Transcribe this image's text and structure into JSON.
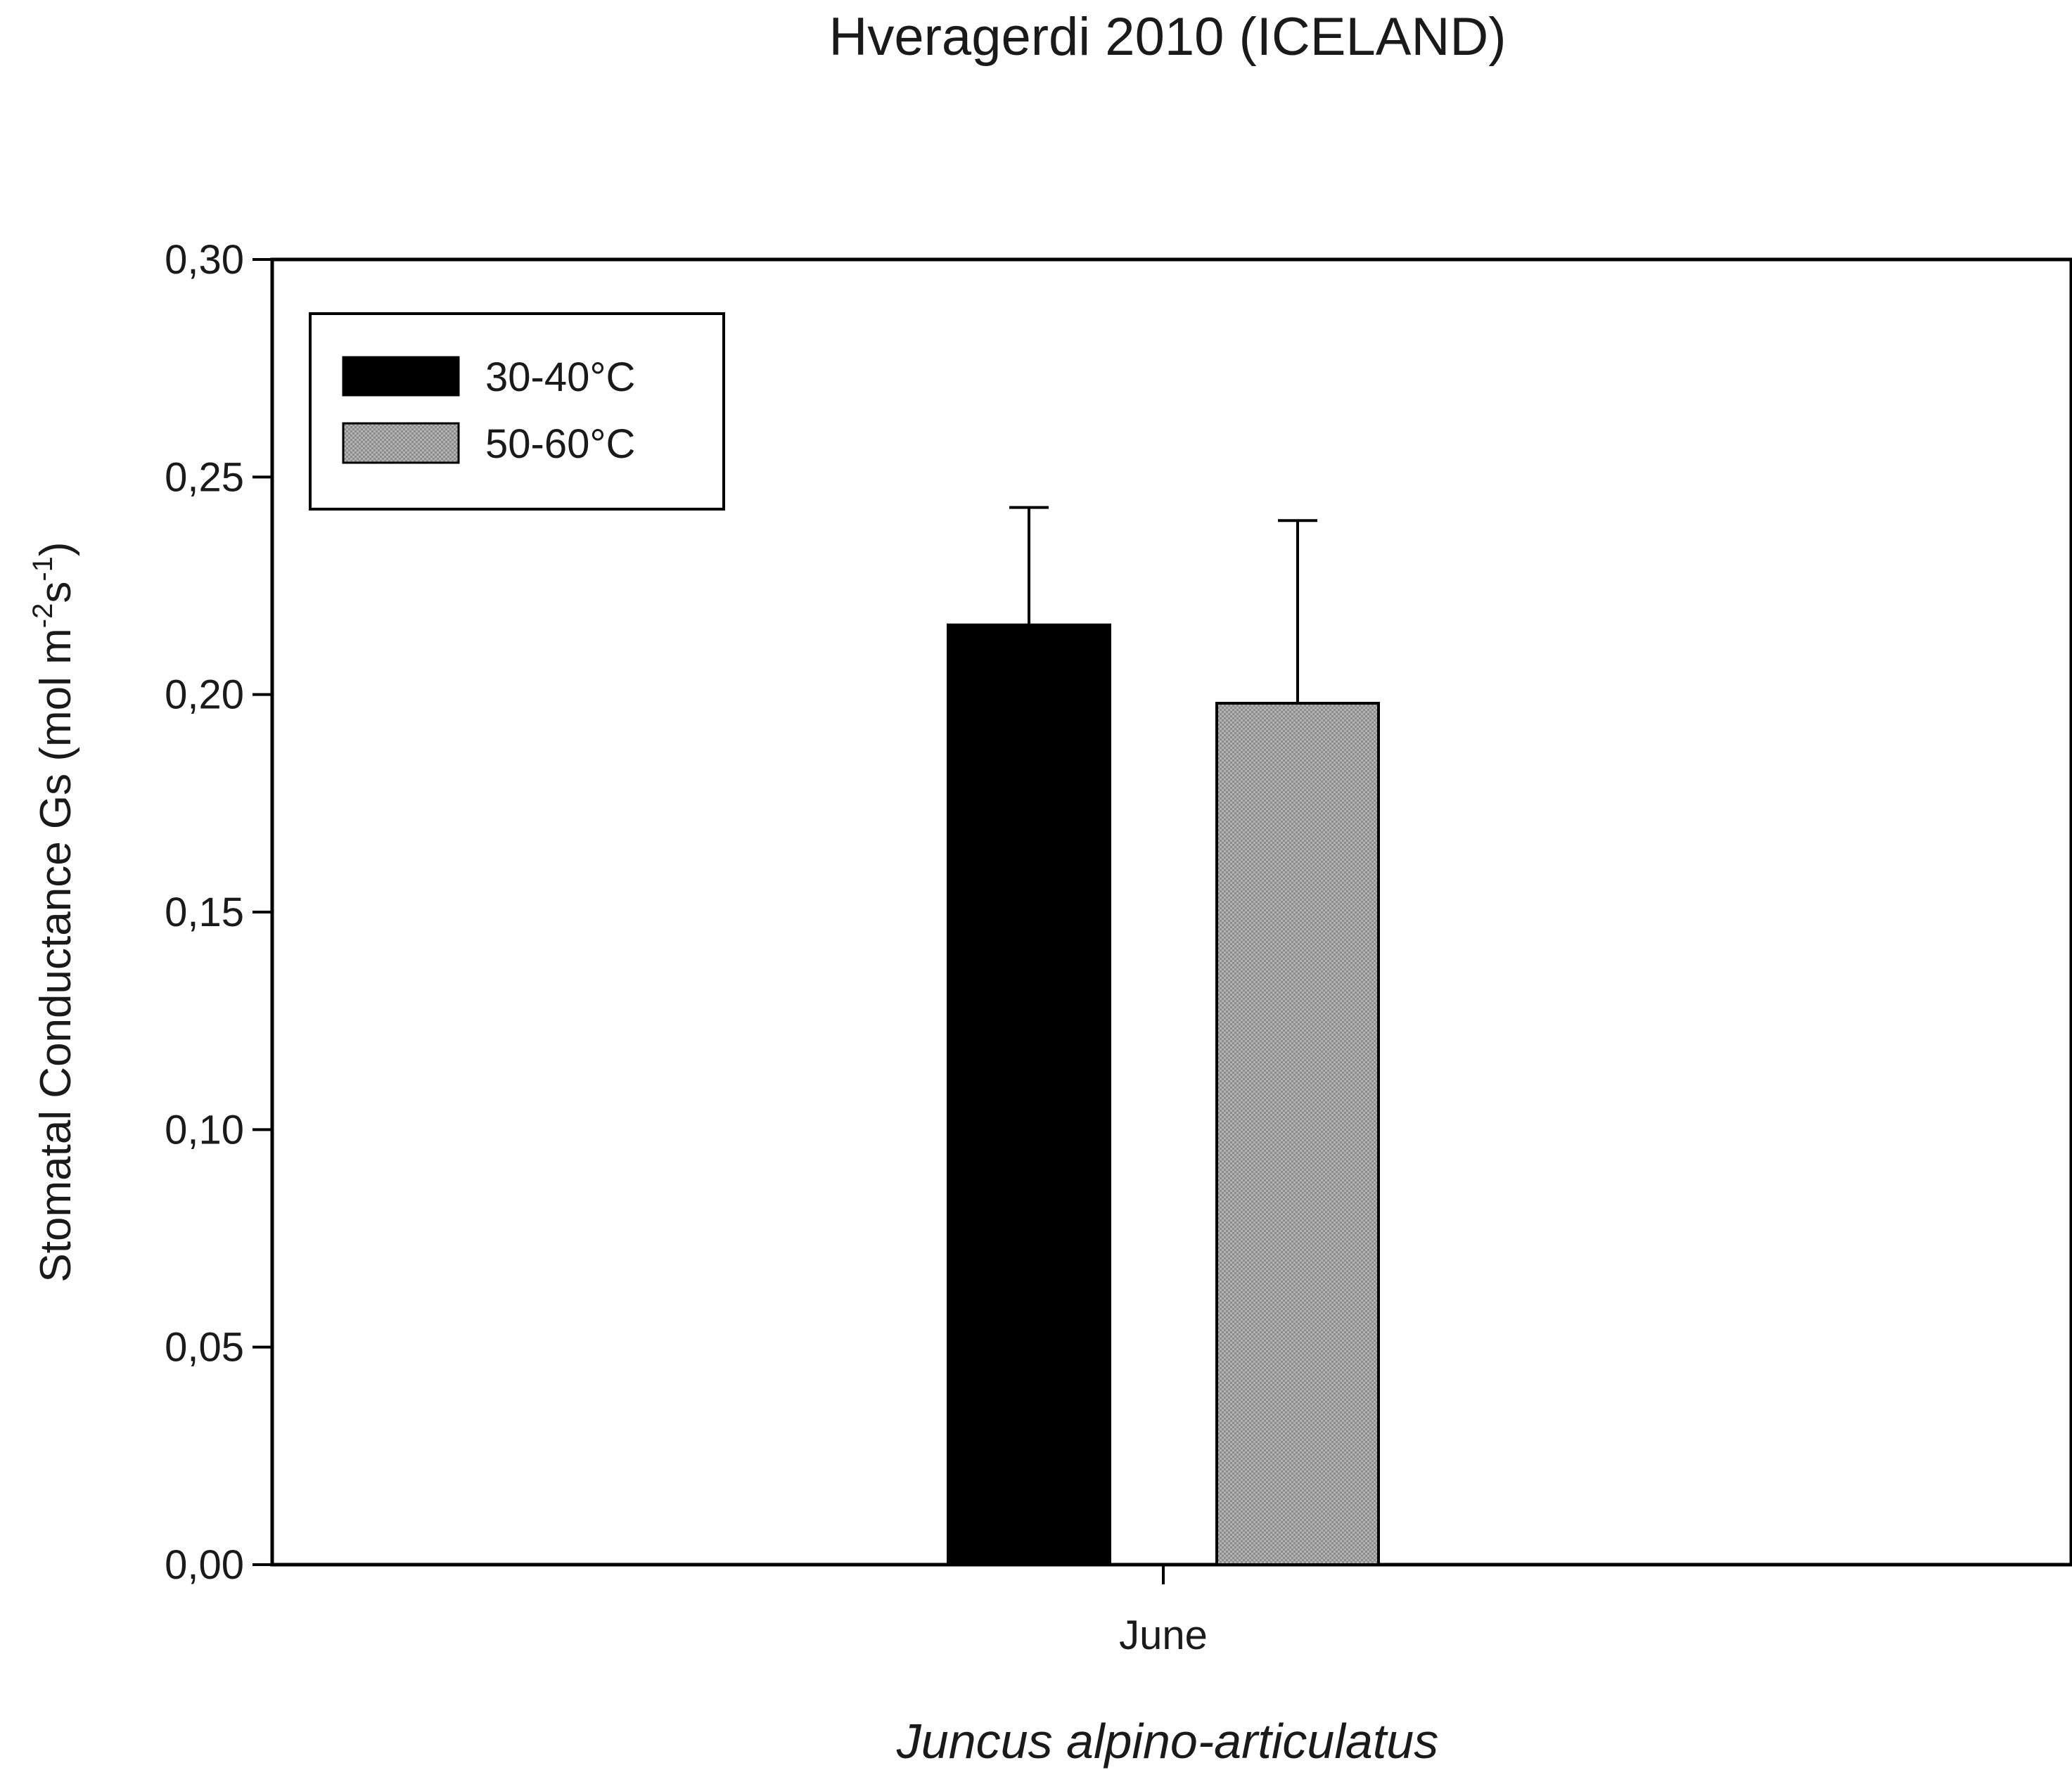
{
  "chart_data": {
    "type": "bar",
    "title": "Hveragerdi 2010 (ICELAND)",
    "categories": [
      "June"
    ],
    "xlabel": "Juncus alpino-articulatus",
    "ylabel": {
      "prefix": "Stomatal Conductance Gs (mol m",
      "sup1": "-2",
      "mid": "s",
      "sup2": "-1",
      "suffix": ")"
    },
    "ylim": [
      0,
      0.3
    ],
    "yticks": [
      {
        "value": 0.0,
        "label": "0,00"
      },
      {
        "value": 0.05,
        "label": "0,05"
      },
      {
        "value": 0.1,
        "label": "0,10"
      },
      {
        "value": 0.15,
        "label": "0,15"
      },
      {
        "value": 0.2,
        "label": "0,20"
      },
      {
        "value": 0.25,
        "label": "0,25"
      },
      {
        "value": 0.3,
        "label": "0,30"
      }
    ],
    "series": [
      {
        "name": "30-40°C",
        "values": [
          0.216
        ],
        "errors": [
          0.027
        ],
        "color": "#000000"
      },
      {
        "name": "50-60°C",
        "values": [
          0.198
        ],
        "errors": [
          0.042
        ],
        "color": "#a6a6a6"
      }
    ],
    "legend": {
      "position": "top-left"
    },
    "grid": false
  }
}
